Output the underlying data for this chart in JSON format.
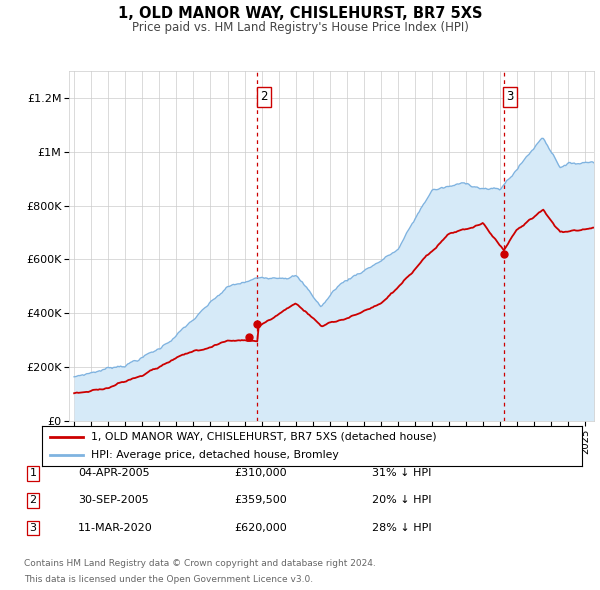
{
  "title1": "1, OLD MANOR WAY, CHISLEHURST, BR7 5XS",
  "title2": "Price paid vs. HM Land Registry's House Price Index (HPI)",
  "legend_line1": "1, OLD MANOR WAY, CHISLEHURST, BR7 5XS (detached house)",
  "legend_line2": "HPI: Average price, detached house, Bromley",
  "table": [
    {
      "num": "1",
      "date": "04-APR-2005",
      "price": "£310,000",
      "hpi": "31% ↓ HPI"
    },
    {
      "num": "2",
      "date": "30-SEP-2005",
      "price": "£359,500",
      "hpi": "20% ↓ HPI"
    },
    {
      "num": "3",
      "date": "11-MAR-2020",
      "price": "£620,000",
      "hpi": "28% ↓ HPI"
    }
  ],
  "footer": [
    "Contains HM Land Registry data © Crown copyright and database right 2024.",
    "This data is licensed under the Open Government Licence v3.0."
  ],
  "sale_color": "#cc0000",
  "hpi_color": "#7fb3e0",
  "hpi_fill_color": "#d6eaf8",
  "vline_color": "#cc0000",
  "background_color": "#ffffff",
  "ylim": [
    0,
    1300000
  ],
  "yticks": [
    0,
    200000,
    400000,
    600000,
    800000,
    1000000,
    1200000
  ],
  "ytick_labels": [
    "£0",
    "£200K",
    "£400K",
    "£600K",
    "£800K",
    "£1M",
    "£1.2M"
  ],
  "sale1_x": 2005.27,
  "sale1_y": 310000,
  "sale2_x": 2005.75,
  "sale2_y": 359500,
  "sale3_x": 2020.2,
  "sale3_y": 620000,
  "vline1_x": 2005.75,
  "vline2_x": 2020.2,
  "xmin": 1994.7,
  "xmax": 2025.5
}
